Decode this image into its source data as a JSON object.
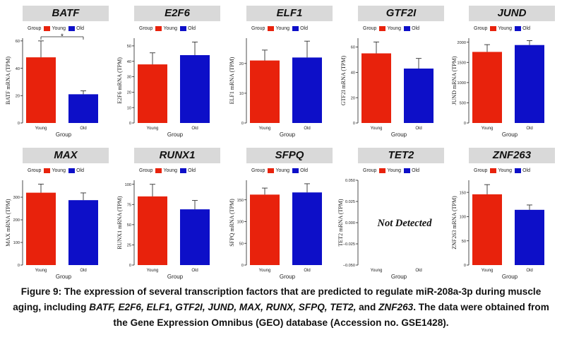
{
  "colors": {
    "young": "#e8220c",
    "old": "#0d0fc8",
    "panel_header": "#d9d9d9"
  },
  "legend": {
    "label": "Group",
    "young": "Young",
    "old": "Old"
  },
  "caption": {
    "lead": "Figure 9: The expression of several transcription factors that are predicted to regulate miR-208a-3p during muscle aging, including ",
    "genes": "BATF, E2F6, ELF1, GTF2I, JUND, MAX, RUNX, SFPQ, TET2,",
    "and": " and ",
    "last_gene": "ZNF263",
    "tail": ". The data were obtained from the Gene Expression Omnibus (GEO) database (Accession no. GSE1428)."
  },
  "chart_data": [
    {
      "type": "bar",
      "title": "BATF",
      "xlabel": "Group",
      "ylabel": "BATF mRNA (TPM)",
      "categories": [
        "Young",
        "Old"
      ],
      "values": [
        48,
        21
      ],
      "errors": [
        12,
        2.5
      ],
      "ylim": [
        0,
        62
      ],
      "yticks": [
        0,
        20,
        40,
        60
      ],
      "yticklabels": [
        "0",
        "20",
        "40",
        "60"
      ],
      "significance": "*"
    },
    {
      "type": "bar",
      "title": "E2F6",
      "xlabel": "Group",
      "ylabel": "E2F6 mRNA (TPM)",
      "categories": [
        "Young",
        "Old"
      ],
      "values": [
        38,
        44
      ],
      "errors": [
        7.5,
        8.5
      ],
      "ylim": [
        0,
        55
      ],
      "yticks": [
        0,
        10,
        20,
        30,
        40,
        50
      ],
      "yticklabels": [
        "0",
        "10",
        "20",
        "30",
        "40",
        "50"
      ]
    },
    {
      "type": "bar",
      "title": "ELF1",
      "xlabel": "Group",
      "ylabel": "ELF1 mRNA (TPM)",
      "categories": [
        "Young",
        "Old"
      ],
      "values": [
        21,
        22
      ],
      "errors": [
        3.5,
        5.5
      ],
      "ylim": [
        0,
        28.5
      ],
      "yticks": [
        0,
        10,
        20
      ],
      "yticklabels": [
        "0",
        "10",
        "20"
      ]
    },
    {
      "type": "bar",
      "title": "GTF2I",
      "xlabel": "Group",
      "ylabel": "GTF2I mRNA (TPM)",
      "categories": [
        "Young",
        "Old"
      ],
      "values": [
        55,
        43
      ],
      "errors": [
        9,
        8
      ],
      "ylim": [
        0,
        67
      ],
      "yticks": [
        0,
        20,
        40,
        60
      ],
      "yticklabels": [
        "0",
        "20",
        "40",
        "60"
      ]
    },
    {
      "type": "bar",
      "title": "JUND",
      "xlabel": "Group",
      "ylabel": "JUND mRNA (TPM)",
      "categories": [
        "Young",
        "Old"
      ],
      "values": [
        1760,
        1930
      ],
      "errors": [
        180,
        110
      ],
      "ylim": [
        0,
        2100
      ],
      "yticks": [
        0,
        500,
        1000,
        1500,
        2000
      ],
      "yticklabels": [
        "0",
        "500",
        "1000",
        "1500",
        "2000"
      ]
    },
    {
      "type": "bar",
      "title": "MAX",
      "xlabel": "Group",
      "ylabel": "MAX mRNA (TPM)",
      "categories": [
        "Young",
        "Old"
      ],
      "values": [
        320,
        287
      ],
      "errors": [
        38,
        32
      ],
      "ylim": [
        0,
        375
      ],
      "yticks": [
        0,
        100,
        200,
        300
      ],
      "yticklabels": [
        "0",
        "100",
        "200",
        "300"
      ]
    },
    {
      "type": "bar",
      "title": "RUNX1",
      "xlabel": "Group",
      "ylabel": "RUNX1 mRNA (TPM)",
      "categories": [
        "Young",
        "Old"
      ],
      "values": [
        85,
        69
      ],
      "errors": [
        15,
        11
      ],
      "ylim": [
        0,
        105
      ],
      "yticks": [
        0,
        25,
        50,
        75,
        100
      ],
      "yticklabels": [
        "0",
        "25",
        "50",
        "75",
        "100"
      ]
    },
    {
      "type": "bar",
      "title": "SFPQ",
      "xlabel": "Group",
      "ylabel": "SFPQ mRNA (TPM)",
      "categories": [
        "Young",
        "Old"
      ],
      "values": [
        162,
        167
      ],
      "errors": [
        15,
        20
      ],
      "ylim": [
        0,
        195
      ],
      "yticks": [
        0,
        50,
        100,
        150
      ],
      "yticklabels": [
        "0",
        "50",
        "100",
        "150"
      ]
    },
    {
      "type": "bar",
      "title": "TET2",
      "xlabel": "Group",
      "ylabel": "TET2 mRNA (TPM)",
      "categories": [
        "Young",
        "Old"
      ],
      "values": [
        null,
        null
      ],
      "errors": [
        null,
        null
      ],
      "ylim": [
        -0.05,
        0.05
      ],
      "yticks": [
        -0.05,
        -0.025,
        0,
        0.025,
        0.05
      ],
      "yticklabels": [
        "−0.050",
        "−0.025",
        "0.000",
        "0.025",
        "0.050"
      ],
      "annotation": "Not Detected"
    },
    {
      "type": "bar",
      "title": "ZNF263",
      "xlabel": "Group",
      "ylabel": "ZNF263 mRNA (TPM)",
      "categories": [
        "Young",
        "Old"
      ],
      "values": [
        146,
        114
      ],
      "errors": [
        20,
        10
      ],
      "ylim": [
        0,
        175
      ],
      "yticks": [
        0,
        50,
        100,
        150
      ],
      "yticklabels": [
        "0",
        "50",
        "100",
        "150"
      ]
    }
  ]
}
